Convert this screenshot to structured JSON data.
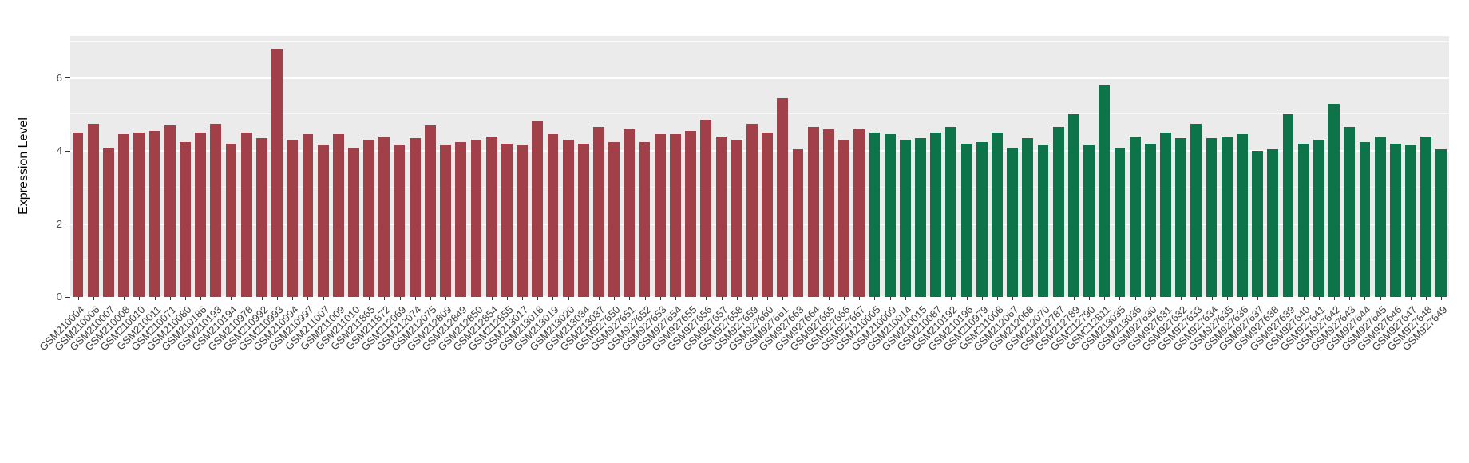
{
  "figure": {
    "background": "#FFFFFF",
    "panel_background": "#EBEBEB",
    "grid_major_color": "#FFFFFF",
    "grid_minor_color": "#F7F7F7"
  },
  "chart_data": {
    "type": "bar",
    "title": "",
    "xlabel": "",
    "ylabel": "Expression Level",
    "ylim": [
      0,
      7.15
    ],
    "yticks": [
      0,
      2,
      4,
      6
    ],
    "grid": true,
    "legend": "none",
    "bar_colors": {
      "red": "#A24049",
      "green": "#0D7349"
    },
    "bars": [
      {
        "label": "GSM210004",
        "value": 4.5,
        "group": "red"
      },
      {
        "label": "GSM210006",
        "value": 4.75,
        "group": "red"
      },
      {
        "label": "GSM210007",
        "value": 4.1,
        "group": "red"
      },
      {
        "label": "GSM210008",
        "value": 4.45,
        "group": "red"
      },
      {
        "label": "GSM210010",
        "value": 4.5,
        "group": "red"
      },
      {
        "label": "GSM210011",
        "value": 4.55,
        "group": "red"
      },
      {
        "label": "GSM210071",
        "value": 4.7,
        "group": "red"
      },
      {
        "label": "GSM210080",
        "value": 4.25,
        "group": "red"
      },
      {
        "label": "GSM210186",
        "value": 4.5,
        "group": "red"
      },
      {
        "label": "GSM210193",
        "value": 4.75,
        "group": "red"
      },
      {
        "label": "GSM210194",
        "value": 4.2,
        "group": "red"
      },
      {
        "label": "GSM210978",
        "value": 4.5,
        "group": "red"
      },
      {
        "label": "GSM210992",
        "value": 4.35,
        "group": "red"
      },
      {
        "label": "GSM210993",
        "value": 6.8,
        "group": "red"
      },
      {
        "label": "GSM210994",
        "value": 4.3,
        "group": "red"
      },
      {
        "label": "GSM210997",
        "value": 4.45,
        "group": "red"
      },
      {
        "label": "GSM211007",
        "value": 4.15,
        "group": "red"
      },
      {
        "label": "GSM211009",
        "value": 4.45,
        "group": "red"
      },
      {
        "label": "GSM211010",
        "value": 4.1,
        "group": "red"
      },
      {
        "label": "GSM211865",
        "value": 4.3,
        "group": "red"
      },
      {
        "label": "GSM211872",
        "value": 4.4,
        "group": "red"
      },
      {
        "label": "GSM212069",
        "value": 4.15,
        "group": "red"
      },
      {
        "label": "GSM212074",
        "value": 4.35,
        "group": "red"
      },
      {
        "label": "GSM212075",
        "value": 4.7,
        "group": "red"
      },
      {
        "label": "GSM212809",
        "value": 4.15,
        "group": "red"
      },
      {
        "label": "GSM212849",
        "value": 4.25,
        "group": "red"
      },
      {
        "label": "GSM212850",
        "value": 4.3,
        "group": "red"
      },
      {
        "label": "GSM212854",
        "value": 4.4,
        "group": "red"
      },
      {
        "label": "GSM212855",
        "value": 4.2,
        "group": "red"
      },
      {
        "label": "GSM213017",
        "value": 4.15,
        "group": "red"
      },
      {
        "label": "GSM213018",
        "value": 4.8,
        "group": "red"
      },
      {
        "label": "GSM213019",
        "value": 4.45,
        "group": "red"
      },
      {
        "label": "GSM213020",
        "value": 4.3,
        "group": "red"
      },
      {
        "label": "GSM213034",
        "value": 4.2,
        "group": "red"
      },
      {
        "label": "GSM213037",
        "value": 4.65,
        "group": "red"
      },
      {
        "label": "GSM927650",
        "value": 4.25,
        "group": "red"
      },
      {
        "label": "GSM927651",
        "value": 4.6,
        "group": "red"
      },
      {
        "label": "GSM927652",
        "value": 4.25,
        "group": "red"
      },
      {
        "label": "GSM927653",
        "value": 4.45,
        "group": "red"
      },
      {
        "label": "GSM927654",
        "value": 4.45,
        "group": "red"
      },
      {
        "label": "GSM927655",
        "value": 4.55,
        "group": "red"
      },
      {
        "label": "GSM927656",
        "value": 4.85,
        "group": "red"
      },
      {
        "label": "GSM927657",
        "value": 4.4,
        "group": "red"
      },
      {
        "label": "GSM927658",
        "value": 4.3,
        "group": "red"
      },
      {
        "label": "GSM927659",
        "value": 4.75,
        "group": "red"
      },
      {
        "label": "GSM927660",
        "value": 4.5,
        "group": "red"
      },
      {
        "label": "GSM927661",
        "value": 5.45,
        "group": "red"
      },
      {
        "label": "GSM927663",
        "value": 4.05,
        "group": "red"
      },
      {
        "label": "GSM927664",
        "value": 4.65,
        "group": "red"
      },
      {
        "label": "GSM927665",
        "value": 4.6,
        "group": "red"
      },
      {
        "label": "GSM927666",
        "value": 4.3,
        "group": "red"
      },
      {
        "label": "GSM927667",
        "value": 4.6,
        "group": "red"
      },
      {
        "label": "GSM210005",
        "value": 4.5,
        "group": "green"
      },
      {
        "label": "GSM210009",
        "value": 4.45,
        "group": "green"
      },
      {
        "label": "GSM210014",
        "value": 4.3,
        "group": "green"
      },
      {
        "label": "GSM210015",
        "value": 4.35,
        "group": "green"
      },
      {
        "label": "GSM210087",
        "value": 4.5,
        "group": "green"
      },
      {
        "label": "GSM210192",
        "value": 4.65,
        "group": "green"
      },
      {
        "label": "GSM210196",
        "value": 4.2,
        "group": "green"
      },
      {
        "label": "GSM210979",
        "value": 4.25,
        "group": "green"
      },
      {
        "label": "GSM211008",
        "value": 4.5,
        "group": "green"
      },
      {
        "label": "GSM212067",
        "value": 4.1,
        "group": "green"
      },
      {
        "label": "GSM212068",
        "value": 4.35,
        "group": "green"
      },
      {
        "label": "GSM212070",
        "value": 4.15,
        "group": "green"
      },
      {
        "label": "GSM212787",
        "value": 4.65,
        "group": "green"
      },
      {
        "label": "GSM212789",
        "value": 5.0,
        "group": "green"
      },
      {
        "label": "GSM212790",
        "value": 4.15,
        "group": "green"
      },
      {
        "label": "GSM212811",
        "value": 5.8,
        "group": "green"
      },
      {
        "label": "GSM213035",
        "value": 4.1,
        "group": "green"
      },
      {
        "label": "GSM213036",
        "value": 4.4,
        "group": "green"
      },
      {
        "label": "GSM927630",
        "value": 4.2,
        "group": "green"
      },
      {
        "label": "GSM927631",
        "value": 4.5,
        "group": "green"
      },
      {
        "label": "GSM927632",
        "value": 4.35,
        "group": "green"
      },
      {
        "label": "GSM927633",
        "value": 4.75,
        "group": "green"
      },
      {
        "label": "GSM927634",
        "value": 4.35,
        "group": "green"
      },
      {
        "label": "GSM927635",
        "value": 4.4,
        "group": "green"
      },
      {
        "label": "GSM927636",
        "value": 4.45,
        "group": "green"
      },
      {
        "label": "GSM927637",
        "value": 4.0,
        "group": "green"
      },
      {
        "label": "GSM927638",
        "value": 4.05,
        "group": "green"
      },
      {
        "label": "GSM927639",
        "value": 5.0,
        "group": "green"
      },
      {
        "label": "GSM927640",
        "value": 4.2,
        "group": "green"
      },
      {
        "label": "GSM927641",
        "value": 4.3,
        "group": "green"
      },
      {
        "label": "GSM927642",
        "value": 5.3,
        "group": "green"
      },
      {
        "label": "GSM927643",
        "value": 4.65,
        "group": "green"
      },
      {
        "label": "GSM927644",
        "value": 4.25,
        "group": "green"
      },
      {
        "label": "GSM927645",
        "value": 4.4,
        "group": "green"
      },
      {
        "label": "GSM927646",
        "value": 4.2,
        "group": "green"
      },
      {
        "label": "GSM927647",
        "value": 4.15,
        "group": "green"
      },
      {
        "label": "GSM927648",
        "value": 4.4,
        "group": "green"
      },
      {
        "label": "GSM927649",
        "value": 4.05,
        "group": "green"
      }
    ]
  }
}
